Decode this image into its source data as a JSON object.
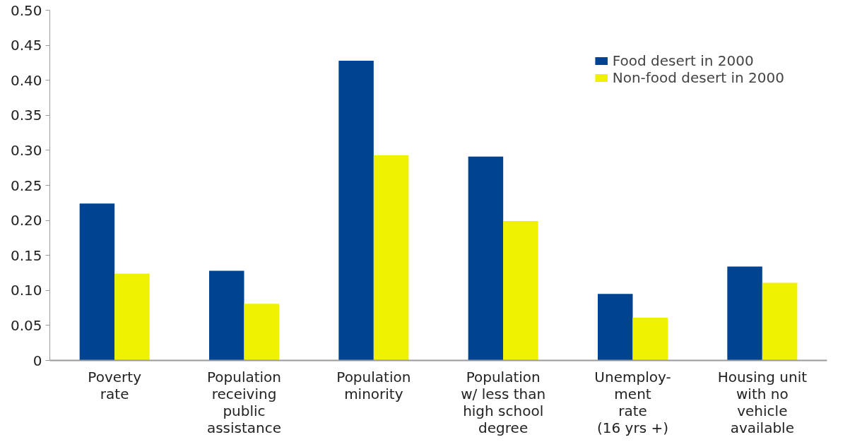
{
  "chart_data": {
    "type": "bar",
    "categories": [
      "Poverty\nrate",
      "Population\nreceiving\npublic\nassistance",
      "Population\nminority",
      "Population\nw/ less than\nhigh school\ndegree",
      "Unemploy-\nment\nrate\n(16 yrs +)",
      "Housing unit\nwith no\nvehicle\navailable"
    ],
    "series": [
      {
        "name": "Food desert in 2000",
        "color": "#004390",
        "values": [
          0.224,
          0.128,
          0.428,
          0.291,
          0.095,
          0.134
        ]
      },
      {
        "name": "Non-food desert in 2000",
        "color": "#eef200",
        "values": [
          0.124,
          0.081,
          0.293,
          0.199,
          0.061,
          0.111
        ]
      }
    ],
    "ylim": [
      0,
      0.5
    ],
    "yticks": [
      {
        "value": 0,
        "label": "0"
      },
      {
        "value": 0.05,
        "label": "0.05"
      },
      {
        "value": 0.1,
        "label": "0.10"
      },
      {
        "value": 0.15,
        "label": "0.15"
      },
      {
        "value": 0.2,
        "label": "0.20"
      },
      {
        "value": 0.25,
        "label": "0.25"
      },
      {
        "value": 0.3,
        "label": "0.30"
      },
      {
        "value": 0.35,
        "label": "0.35"
      },
      {
        "value": 0.4,
        "label": "0.40"
      },
      {
        "value": 0.45,
        "label": "0.45"
      },
      {
        "value": 0.5,
        "label": "0.50"
      }
    ],
    "grid": false,
    "legend": "top right"
  }
}
